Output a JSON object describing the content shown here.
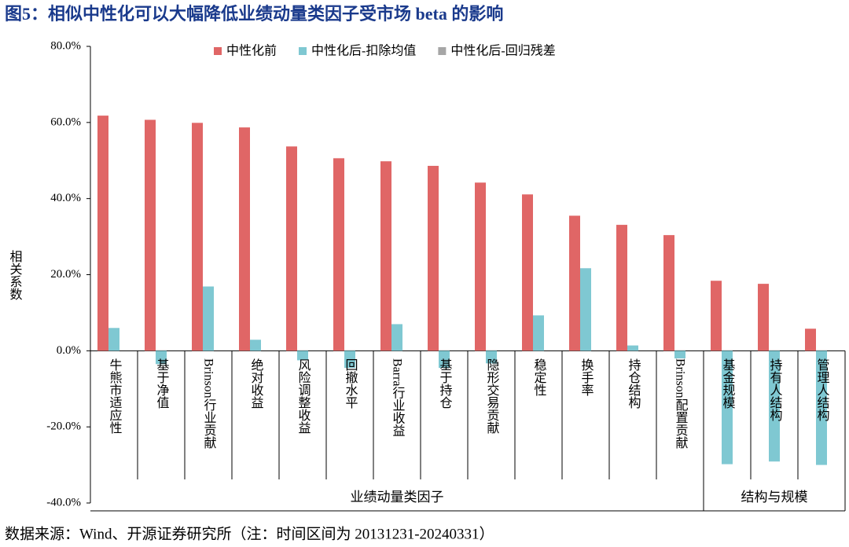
{
  "chart_data": {
    "type": "bar",
    "title": "图5：相似中性化可以大幅降低业绩动量类因子受市场 beta 的影响",
    "source": "数据来源：Wind、开源证券研究所（注：时间区间为 20131231-20240331）",
    "y_label": "相关系数",
    "categories": [
      "牛熊市适应性",
      "基于净值",
      "Brinson行业贡献",
      "绝对收益",
      "风险调整收益",
      "回撤水平",
      "Barra行业收益",
      "基于持仓",
      "隐形交易贡献",
      "稳定性",
      "换手率",
      "持仓结构",
      "Brinson配置贡献",
      "基金规模",
      "持有人结构",
      "管理人结构"
    ],
    "groups": [
      {
        "label": "业绩动量类因子",
        "count": 13
      },
      {
        "label": "结构与规模",
        "count": 3
      }
    ],
    "series": [
      {
        "name": "中性化前",
        "color": "#e06666",
        "values": [
          61.8,
          60.7,
          59.9,
          58.7,
          53.7,
          50.6,
          49.8,
          48.6,
          44.2,
          41.1,
          35.5,
          33.1,
          30.4,
          18.4,
          17.6,
          5.8
        ]
      },
      {
        "name": "中性化后-扣除均值",
        "color": "#7fc8d2",
        "values": [
          6.0,
          -3.5,
          16.9,
          2.9,
          -2.5,
          -4.5,
          7.0,
          -4.5,
          -3.3,
          9.3,
          21.7,
          1.4,
          -2.0,
          -29.8,
          -29.1,
          -30.0
        ]
      },
      {
        "name": "中性化后-回归残差",
        "color": "#a6a6a6",
        "values": [
          null,
          null,
          null,
          null,
          null,
          null,
          null,
          null,
          null,
          null,
          null,
          null,
          null,
          null,
          null,
          null
        ]
      }
    ],
    "ylim": [
      -40,
      80
    ],
    "yticks": [
      {
        "value": -40,
        "label": "-40.0%"
      },
      {
        "value": -20,
        "label": "-20.0%"
      },
      {
        "value": 0,
        "label": "0.0%"
      },
      {
        "value": 20,
        "label": "20.0%"
      },
      {
        "value": 40,
        "label": "40.0%"
      },
      {
        "value": 60,
        "label": "60.0%"
      },
      {
        "value": 80,
        "label": "80.0%"
      }
    ],
    "legend": "top"
  }
}
